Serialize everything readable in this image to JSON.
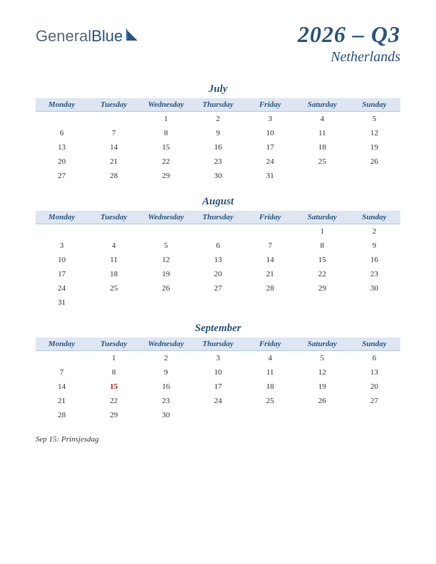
{
  "logo": {
    "text_general": "General",
    "text_blue": "Blue",
    "icon_color_1": "#3a7ab8",
    "icon_color_2": "#2c5580"
  },
  "header": {
    "quarter": "2026 – Q3",
    "country": "Netherlands"
  },
  "colors": {
    "heading": "#2c5580",
    "header_bg": "#dde6f2",
    "header_border": "#b8c8dc",
    "cell_text": "#333333",
    "holiday": "#b02020",
    "background": "#ffffff"
  },
  "day_headers": [
    "Monday",
    "Tuesday",
    "Wednesday",
    "Thursday",
    "Friday",
    "Saturday",
    "Sunday"
  ],
  "months": [
    {
      "name": "July",
      "weeks": [
        [
          "",
          "",
          "1",
          "2",
          "3",
          "4",
          "5"
        ],
        [
          "6",
          "7",
          "8",
          "9",
          "10",
          "11",
          "12"
        ],
        [
          "13",
          "14",
          "15",
          "16",
          "17",
          "18",
          "19"
        ],
        [
          "20",
          "21",
          "22",
          "23",
          "24",
          "25",
          "26"
        ],
        [
          "27",
          "28",
          "29",
          "30",
          "31",
          "",
          ""
        ]
      ],
      "holidays": []
    },
    {
      "name": "August",
      "weeks": [
        [
          "",
          "",
          "",
          "",
          "",
          "1",
          "2"
        ],
        [
          "3",
          "4",
          "5",
          "6",
          "7",
          "8",
          "9"
        ],
        [
          "10",
          "11",
          "12",
          "13",
          "14",
          "15",
          "16"
        ],
        [
          "17",
          "18",
          "19",
          "20",
          "21",
          "22",
          "23"
        ],
        [
          "24",
          "25",
          "26",
          "27",
          "28",
          "29",
          "30"
        ],
        [
          "31",
          "",
          "",
          "",
          "",
          "",
          ""
        ]
      ],
      "holidays": []
    },
    {
      "name": "September",
      "weeks": [
        [
          "",
          "1",
          "2",
          "3",
          "4",
          "5",
          "6"
        ],
        [
          "7",
          "8",
          "9",
          "10",
          "11",
          "12",
          "13"
        ],
        [
          "14",
          "15",
          "16",
          "17",
          "18",
          "19",
          "20"
        ],
        [
          "21",
          "22",
          "23",
          "24",
          "25",
          "26",
          "27"
        ],
        [
          "28",
          "29",
          "30",
          "",
          "",
          "",
          ""
        ]
      ],
      "holidays": [
        "15"
      ]
    }
  ],
  "footnote": "Sep 15: Prinsjesdag"
}
